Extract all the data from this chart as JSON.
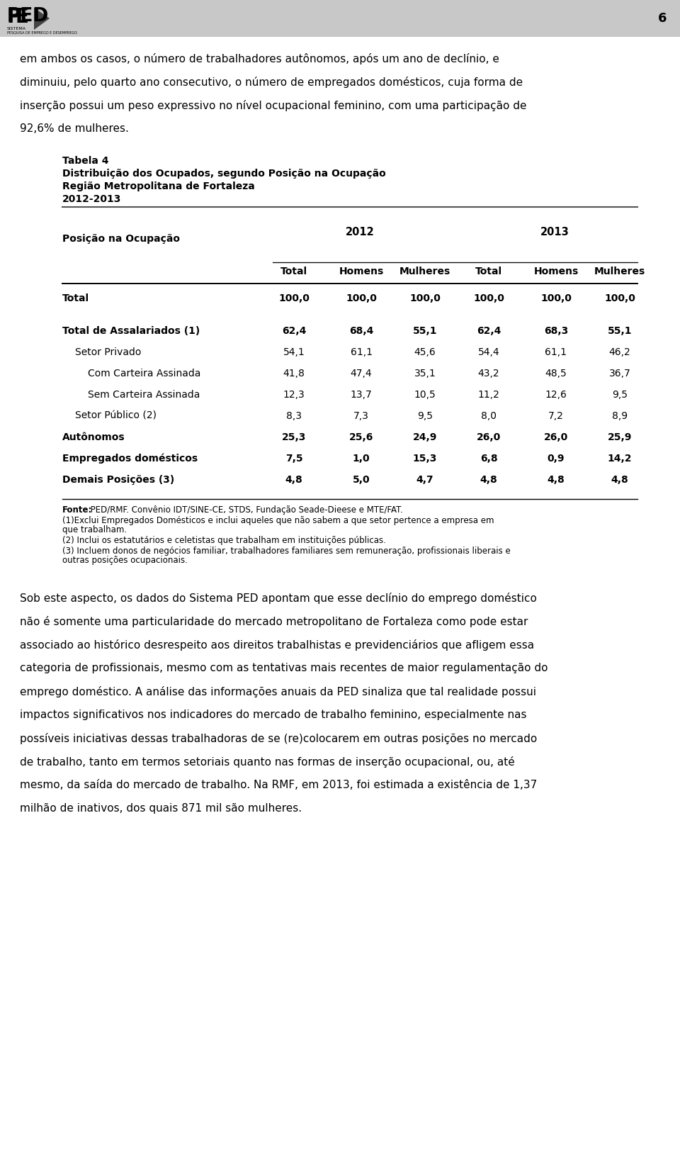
{
  "header_bg_color": "#c8c8c8",
  "page_number": "6",
  "body_bg_color": "#ffffff",
  "table_title_line1": "Tabela 4",
  "table_title_line2": "Distribuição dos Ocupados, segundo Posição na Ocupação",
  "table_title_line3": "Região Metropolitana de Fortaleza",
  "table_title_line4": "2012-2013",
  "rows": [
    {
      "label": "Total",
      "values": [
        "100,0",
        "100,0",
        "100,0",
        "100,0",
        "100,0",
        "100,0"
      ],
      "bold": true,
      "indent": 0,
      "spacer_before": false
    },
    {
      "label": "",
      "values": [
        "",
        "",
        "",
        "",
        "",
        ""
      ],
      "bold": false,
      "indent": 0,
      "spacer_before": false
    },
    {
      "label": "Total de Assalariados (1)",
      "values": [
        "62,4",
        "68,4",
        "55,1",
        "62,4",
        "68,3",
        "55,1"
      ],
      "bold": true,
      "indent": 0,
      "spacer_before": false
    },
    {
      "label": "Setor Privado",
      "values": [
        "54,1",
        "61,1",
        "45,6",
        "54,4",
        "61,1",
        "46,2"
      ],
      "bold": false,
      "indent": 1,
      "spacer_before": false
    },
    {
      "label": "Com Carteira Assinada",
      "values": [
        "41,8",
        "47,4",
        "35,1",
        "43,2",
        "48,5",
        "36,7"
      ],
      "bold": false,
      "indent": 2,
      "spacer_before": false
    },
    {
      "label": "Sem Carteira Assinada",
      "values": [
        "12,3",
        "13,7",
        "10,5",
        "11,2",
        "12,6",
        "9,5"
      ],
      "bold": false,
      "indent": 2,
      "spacer_before": false
    },
    {
      "label": "Setor Público (2)",
      "values": [
        "8,3",
        "7,3",
        "9,5",
        "8,0",
        "7,2",
        "8,9"
      ],
      "bold": false,
      "indent": 1,
      "spacer_before": false
    },
    {
      "label": "Autônomos",
      "values": [
        "25,3",
        "25,6",
        "24,9",
        "26,0",
        "26,0",
        "25,9"
      ],
      "bold": true,
      "indent": 0,
      "spacer_before": false
    },
    {
      "label": "Empregados domésticos",
      "values": [
        "7,5",
        "1,0",
        "15,3",
        "6,8",
        "0,9",
        "14,2"
      ],
      "bold": true,
      "indent": 0,
      "spacer_before": false
    },
    {
      "label": "Demais Posições (3)",
      "values": [
        "4,8",
        "5,0",
        "4,7",
        "4,8",
        "4,8",
        "4,8"
      ],
      "bold": true,
      "indent": 0,
      "spacer_before": false
    }
  ],
  "intro_lines": [
    "em ambos os casos, o número de trabalhadores autônomos, após um ano de declínio, e",
    "diminuiu, pelo quarto ano consecutivo, o número de empregados domésticos, cuja forma de",
    "inserção possui um peso expressivo no nível ocupacional feminino, com uma participação de",
    "92,6% de mulheres."
  ],
  "fonte_bold": "Fonte:",
  "fonte_rest": " PED/RMF. Convênio IDT/SINE-CE, STDS, Fundação Seade-Dieese e MTE/FAT.",
  "note1": "(1)Exclui Empregados Domésticos e inclui aqueles que não sabem a que setor pertence a empresa em",
  "note1b": "que trabalham.",
  "note2": "(2) Inclui os estatutários e celetistas que trabalham em instituições públicas.",
  "note3": "(3) Incluem donos de negócios familiar, trabalhadores familiares sem remuneração, profissionais liberais e",
  "note3b": "outras posições ocupacionais.",
  "closing_lines": [
    "Sob este aspecto, os dados do Sistema PED apontam que esse declínio do emprego doméstico",
    "não é somente uma particularidade do mercado metropolitano de Fortaleza como pode estar",
    "associado ao histórico desrespeito aos direitos trabalhistas e previdenciários que afligem essa",
    "categoria de profissionais, mesmo com as tentativas mais recentes de maior regulamentação do",
    "emprego doméstico. A análise das informações anuais da PED sinaliza que tal realidade possui",
    "impactos significativos nos indicadores do mercado de trabalho feminino, especialmente nas",
    "possíveis iniciativas dessas trabalhadoras de se (re)colocarem em outras posições no mercado",
    "de trabalho, tanto em termos setoriais quanto nas formas de inserção ocupacional, ou, até",
    "mesmo, da saída do mercado de trabalho. Na RMF, em 2013, foi estimada a existência de 1,37",
    "milhão de inativos, dos quais 871 mil são mulheres."
  ]
}
